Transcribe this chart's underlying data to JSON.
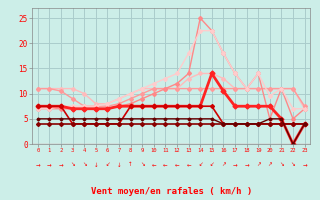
{
  "background_color": "#cceee8",
  "grid_color": "#aacccc",
  "xlim": [
    -0.5,
    23.5
  ],
  "ylim": [
    0,
    27
  ],
  "yticks": [
    0,
    5,
    10,
    15,
    20,
    25
  ],
  "xticks": [
    0,
    1,
    2,
    3,
    4,
    5,
    6,
    7,
    8,
    9,
    10,
    11,
    12,
    13,
    14,
    15,
    16,
    17,
    18,
    19,
    20,
    21,
    22,
    23
  ],
  "xlabel": "Vent moyen/en rafales ( km/h )",
  "series": [
    {
      "comment": "light pink - high line around 11, dips at 4-5, rises toward end",
      "x": [
        0,
        1,
        2,
        3,
        4,
        5,
        6,
        7,
        8,
        9,
        10,
        11,
        12,
        13,
        14,
        15,
        16,
        17,
        18,
        19,
        20,
        21,
        22,
        23
      ],
      "y": [
        11,
        11,
        11,
        11,
        10,
        8,
        8,
        9,
        10,
        11,
        11,
        11,
        11,
        13,
        14,
        14,
        13,
        11,
        11,
        11,
        11,
        11,
        11,
        7
      ],
      "color": "#ffbbbb",
      "lw": 1.0,
      "marker": "D",
      "ms": 2.0
    },
    {
      "comment": "medium pink - around 11 flat, dips in middle",
      "x": [
        0,
        1,
        2,
        3,
        4,
        5,
        6,
        7,
        8,
        9,
        10,
        11,
        12,
        13,
        14,
        15,
        16,
        17,
        18,
        19,
        20,
        21,
        22,
        23
      ],
      "y": [
        11,
        11,
        10.5,
        9,
        7.5,
        7.5,
        7.5,
        8,
        9,
        10,
        11,
        11,
        11,
        11,
        11,
        11,
        11,
        11,
        11,
        11,
        11,
        11,
        11,
        7.5
      ],
      "color": "#ff9999",
      "lw": 1.0,
      "marker": "D",
      "ms": 2.0
    },
    {
      "comment": "salmon/light - rises from 7 up to 25 peak at 14 then down",
      "x": [
        0,
        1,
        2,
        3,
        4,
        5,
        6,
        7,
        8,
        9,
        10,
        11,
        12,
        13,
        14,
        15,
        16,
        17,
        18,
        19,
        20,
        21,
        22,
        23
      ],
      "y": [
        7,
        7,
        7,
        7,
        7,
        7,
        7,
        7.5,
        8,
        9,
        10,
        11,
        12,
        14,
        25,
        22.5,
        18,
        14,
        11,
        14,
        5,
        11,
        5,
        7
      ],
      "color": "#ff8888",
      "lw": 1.0,
      "marker": "D",
      "ms": 2.0
    },
    {
      "comment": "light salmon - rises from 7 up to 22 peak at 15 then down",
      "x": [
        0,
        1,
        2,
        3,
        4,
        5,
        6,
        7,
        8,
        9,
        10,
        11,
        12,
        13,
        14,
        15,
        16,
        17,
        18,
        19,
        20,
        21,
        22,
        23
      ],
      "y": [
        7,
        7,
        7.5,
        7.5,
        7.5,
        7.5,
        8,
        9,
        10,
        11,
        12,
        13,
        14,
        18,
        22.5,
        22.5,
        18,
        14,
        11,
        14,
        9.5,
        11,
        7,
        7
      ],
      "color": "#ffcccc",
      "lw": 1.0,
      "marker": "D",
      "ms": 2.0
    },
    {
      "comment": "dark red thick - around 7-8 flat, spike at 15, down to 4",
      "x": [
        0,
        1,
        2,
        3,
        4,
        5,
        6,
        7,
        8,
        9,
        10,
        11,
        12,
        13,
        14,
        15,
        16,
        17,
        18,
        19,
        20,
        21,
        22,
        23
      ],
      "y": [
        7.5,
        7.5,
        7.5,
        7,
        7,
        7,
        7,
        7.5,
        7.5,
        7.5,
        7.5,
        7.5,
        7.5,
        7.5,
        7.5,
        14,
        10.5,
        7.5,
        7.5,
        7.5,
        7.5,
        5,
        0,
        4
      ],
      "color": "#ff2222",
      "lw": 2.0,
      "marker": "D",
      "ms": 2.5
    },
    {
      "comment": "dark red medium - around 7.5 flat with dip at 3-5",
      "x": [
        0,
        1,
        2,
        3,
        4,
        5,
        6,
        7,
        8,
        9,
        10,
        11,
        12,
        13,
        14,
        15,
        16,
        17,
        18,
        19,
        20,
        21,
        22,
        23
      ],
      "y": [
        7.5,
        7.5,
        7.5,
        4,
        4,
        4,
        4,
        4,
        7.5,
        7.5,
        7.5,
        7.5,
        7.5,
        7.5,
        7.5,
        7.5,
        4,
        4,
        4,
        4,
        4,
        4,
        4,
        4
      ],
      "color": "#cc0000",
      "lw": 1.2,
      "marker": "D",
      "ms": 2.0
    },
    {
      "comment": "darkest red - around 4 flat mostly",
      "x": [
        0,
        1,
        2,
        3,
        4,
        5,
        6,
        7,
        8,
        9,
        10,
        11,
        12,
        13,
        14,
        15,
        16,
        17,
        18,
        19,
        20,
        21,
        22,
        23
      ],
      "y": [
        4,
        4,
        4,
        4,
        4,
        4,
        4,
        4,
        4,
        4,
        4,
        4,
        4,
        4,
        4,
        4,
        4,
        4,
        4,
        4,
        4,
        4,
        4,
        4
      ],
      "color": "#880000",
      "lw": 1.2,
      "marker": "D",
      "ms": 2.0
    },
    {
      "comment": "very dark - around 5 with some variation, dip to 0 at 22",
      "x": [
        0,
        1,
        2,
        3,
        4,
        5,
        6,
        7,
        8,
        9,
        10,
        11,
        12,
        13,
        14,
        15,
        16,
        17,
        18,
        19,
        20,
        21,
        22,
        23
      ],
      "y": [
        5,
        5,
        5,
        5,
        5,
        5,
        5,
        5,
        5,
        5,
        5,
        5,
        5,
        5,
        5,
        5,
        4,
        4,
        4,
        4,
        5,
        5,
        0,
        4
      ],
      "color": "#660000",
      "lw": 1.0,
      "marker": "D",
      "ms": 1.5
    }
  ],
  "wind_arrows": [
    "→",
    "→",
    "→",
    "↘",
    "↘",
    "↓",
    "↙",
    "↓",
    "↑",
    "↘",
    "←",
    "←",
    "←",
    "←",
    "↙",
    "↙",
    "↗",
    "→",
    "→",
    "↗",
    "↗",
    "↘",
    "↘",
    "→"
  ]
}
